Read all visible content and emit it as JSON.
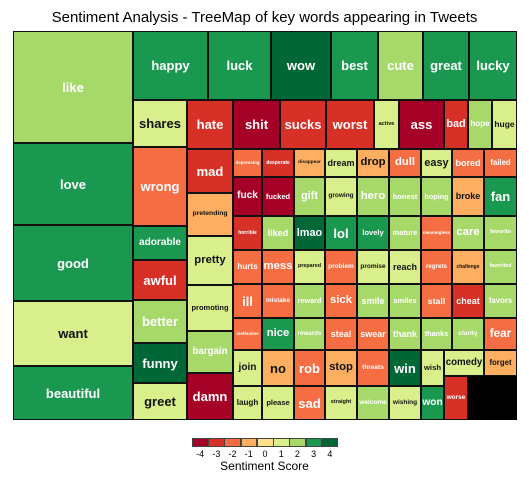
{
  "chart_data": {
    "type": "treemap",
    "title": "Sentiment Analysis - TreeMap of key words appearing in Tweets",
    "legend_title": "Sentiment Score",
    "scale": [
      -4,
      -3,
      -2,
      -1,
      0,
      1,
      2,
      3,
      4
    ],
    "colors": {
      "-4": "#a50026",
      "-3": "#d73027",
      "-2": "#f46d43",
      "-1": "#fdae61",
      "0": "#fee08b",
      "1": "#d9ef8b",
      "2": "#a6d96a",
      "3": "#1a9850",
      "4": "#006837"
    },
    "items": [
      {
        "word": "like",
        "score": 2
      },
      {
        "word": "love",
        "score": 3
      },
      {
        "word": "good",
        "score": 3
      },
      {
        "word": "want",
        "score": 1
      },
      {
        "word": "beautiful",
        "score": 3
      },
      {
        "word": "happy",
        "score": 3
      },
      {
        "word": "luck",
        "score": 3
      },
      {
        "word": "wow",
        "score": 4
      },
      {
        "word": "best",
        "score": 3
      },
      {
        "word": "cute",
        "score": 2
      },
      {
        "word": "great",
        "score": 3
      },
      {
        "word": "lucky",
        "score": 3
      },
      {
        "word": "shares",
        "score": 1
      },
      {
        "word": "wrong",
        "score": -2
      },
      {
        "word": "adorable",
        "score": 3
      },
      {
        "word": "awful",
        "score": -3
      },
      {
        "word": "better",
        "score": 2
      },
      {
        "word": "funny",
        "score": 4
      },
      {
        "word": "greet",
        "score": 1
      },
      {
        "word": "hate",
        "score": -3
      },
      {
        "word": "shit",
        "score": -4
      },
      {
        "word": "sucks",
        "score": -3
      },
      {
        "word": "worst",
        "score": -3
      },
      {
        "word": "active",
        "score": 1
      },
      {
        "word": "ass",
        "score": -4
      },
      {
        "word": "bad",
        "score": -3
      },
      {
        "word": "hope",
        "score": 2
      },
      {
        "word": "huge",
        "score": 1
      },
      {
        "word": "mad",
        "score": -3
      },
      {
        "word": "pretending",
        "score": -1
      },
      {
        "word": "pretty",
        "score": 1
      },
      {
        "word": "promoting",
        "score": 1
      },
      {
        "word": "bargain",
        "score": 2
      },
      {
        "word": "damn",
        "score": -4
      },
      {
        "word": "depressing",
        "score": -2
      },
      {
        "word": "desperate",
        "score": -3
      },
      {
        "word": "disappear",
        "score": -1
      },
      {
        "word": "dream",
        "score": 1
      },
      {
        "word": "drop",
        "score": -1
      },
      {
        "word": "dull",
        "score": -2
      },
      {
        "word": "easy",
        "score": 1
      },
      {
        "word": "bored",
        "score": -2
      },
      {
        "word": "failed",
        "score": -2
      },
      {
        "word": "fuck",
        "score": -4
      },
      {
        "word": "fucked",
        "score": -4
      },
      {
        "word": "gift",
        "score": 2
      },
      {
        "word": "growing",
        "score": 1
      },
      {
        "word": "hero",
        "score": 2
      },
      {
        "word": "honest",
        "score": 2
      },
      {
        "word": "hoping",
        "score": 2
      },
      {
        "word": "broke",
        "score": -1
      },
      {
        "word": "fan",
        "score": 3
      },
      {
        "word": "horrible",
        "score": -3
      },
      {
        "word": "liked",
        "score": 2
      },
      {
        "word": "lmao",
        "score": 4
      },
      {
        "word": "lol",
        "score": 3
      },
      {
        "word": "lovely",
        "score": 3
      },
      {
        "word": "mature",
        "score": 2
      },
      {
        "word": "meaningless",
        "score": -2
      },
      {
        "word": "care",
        "score": 2
      },
      {
        "word": "favorite",
        "score": 2
      },
      {
        "word": "hurts",
        "score": -2
      },
      {
        "word": "mess",
        "score": -2
      },
      {
        "word": "prepared",
        "score": 1
      },
      {
        "word": "problem",
        "score": -2
      },
      {
        "word": "promise",
        "score": 1
      },
      {
        "word": "reach",
        "score": 1
      },
      {
        "word": "regrets",
        "score": -2
      },
      {
        "word": "challenge",
        "score": -1
      },
      {
        "word": "favorited",
        "score": 2
      },
      {
        "word": "ill",
        "score": -2
      },
      {
        "word": "mistake",
        "score": -2
      },
      {
        "word": "reward",
        "score": 2
      },
      {
        "word": "sick",
        "score": -2
      },
      {
        "word": "smile",
        "score": 2
      },
      {
        "word": "smiles",
        "score": 2
      },
      {
        "word": "stall",
        "score": -2
      },
      {
        "word": "cheat",
        "score": -3
      },
      {
        "word": "favors",
        "score": 2
      },
      {
        "word": "ineffective",
        "score": -2
      },
      {
        "word": "nice",
        "score": 3
      },
      {
        "word": "rewards",
        "score": 2
      },
      {
        "word": "steal",
        "score": -2
      },
      {
        "word": "swear",
        "score": -2
      },
      {
        "word": "thank",
        "score": 2
      },
      {
        "word": "thanks",
        "score": 2
      },
      {
        "word": "clarity",
        "score": 2
      },
      {
        "word": "fear",
        "score": -2
      },
      {
        "word": "join",
        "score": 1
      },
      {
        "word": "no",
        "score": -1
      },
      {
        "word": "rob",
        "score": -2
      },
      {
        "word": "stop",
        "score": -1
      },
      {
        "word": "threats",
        "score": -2
      },
      {
        "word": "win",
        "score": 4
      },
      {
        "word": "wish",
        "score": 1
      },
      {
        "word": "comedy",
        "score": 1
      },
      {
        "word": "forget",
        "score": -1
      },
      {
        "word": "laugh",
        "score": 1
      },
      {
        "word": "please",
        "score": 1
      },
      {
        "word": "sad",
        "score": -2
      },
      {
        "word": "straight",
        "score": 1
      },
      {
        "word": "welcome",
        "score": 2
      },
      {
        "word": "wishing",
        "score": 1
      },
      {
        "word": "won",
        "score": 3
      },
      {
        "word": "worse",
        "score": -3
      }
    ]
  }
}
